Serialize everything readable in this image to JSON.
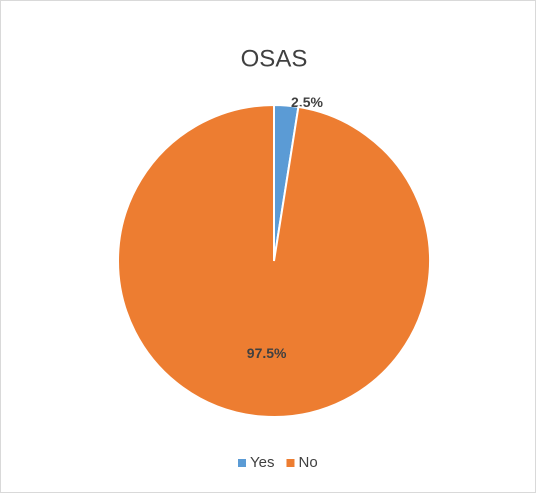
{
  "chart_data": {
    "type": "pie",
    "title": "OSAS",
    "categories": [
      "Yes",
      "No"
    ],
    "values": [
      2.5,
      97.5
    ],
    "value_labels": [
      "2.5%",
      "97.5%"
    ],
    "colors": [
      "#5b9bd5",
      "#ed7d31"
    ],
    "legend": "bottom"
  }
}
